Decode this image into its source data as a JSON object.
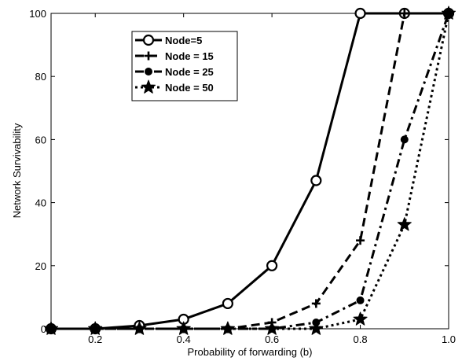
{
  "chart_data": {
    "type": "line",
    "title": "",
    "xlabel": "Probability of forwarding (b)",
    "ylabel": "Network Survivability",
    "xlim": [
      0.1,
      1.0
    ],
    "ylim": [
      0,
      100
    ],
    "xticks": [
      0.2,
      0.4,
      0.6,
      0.8,
      1.0
    ],
    "xtick_labels": [
      "0.2",
      "0.4",
      "0.6",
      "0.8",
      "1.0"
    ],
    "yticks": [
      0,
      20,
      40,
      60,
      80,
      100
    ],
    "ytick_labels": [
      "0",
      "20",
      "40",
      "60",
      "80",
      "100"
    ],
    "grid": false,
    "legend_position": "top-left",
    "x": [
      0.1,
      0.2,
      0.3,
      0.4,
      0.5,
      0.6,
      0.7,
      0.8,
      0.9,
      1.0
    ],
    "series": [
      {
        "name": "Node=5",
        "line_style": "solid",
        "marker": "open-circle",
        "values": [
          0,
          0,
          1,
          3,
          8,
          20,
          47,
          100,
          100,
          100
        ]
      },
      {
        "name": "Node = 15",
        "line_style": "dashed",
        "marker": "plus",
        "values": [
          0,
          0,
          0,
          0,
          0,
          2,
          8,
          28,
          100,
          100
        ]
      },
      {
        "name": "Node = 25",
        "line_style": "dash-dot",
        "marker": "filled-circle",
        "values": [
          0,
          0,
          0,
          0,
          0,
          0,
          2,
          9,
          60,
          100
        ]
      },
      {
        "name": "Node = 50",
        "line_style": "dotted",
        "marker": "star",
        "values": [
          0,
          0,
          0,
          0,
          0,
          0,
          0,
          3,
          33,
          100
        ]
      }
    ]
  }
}
